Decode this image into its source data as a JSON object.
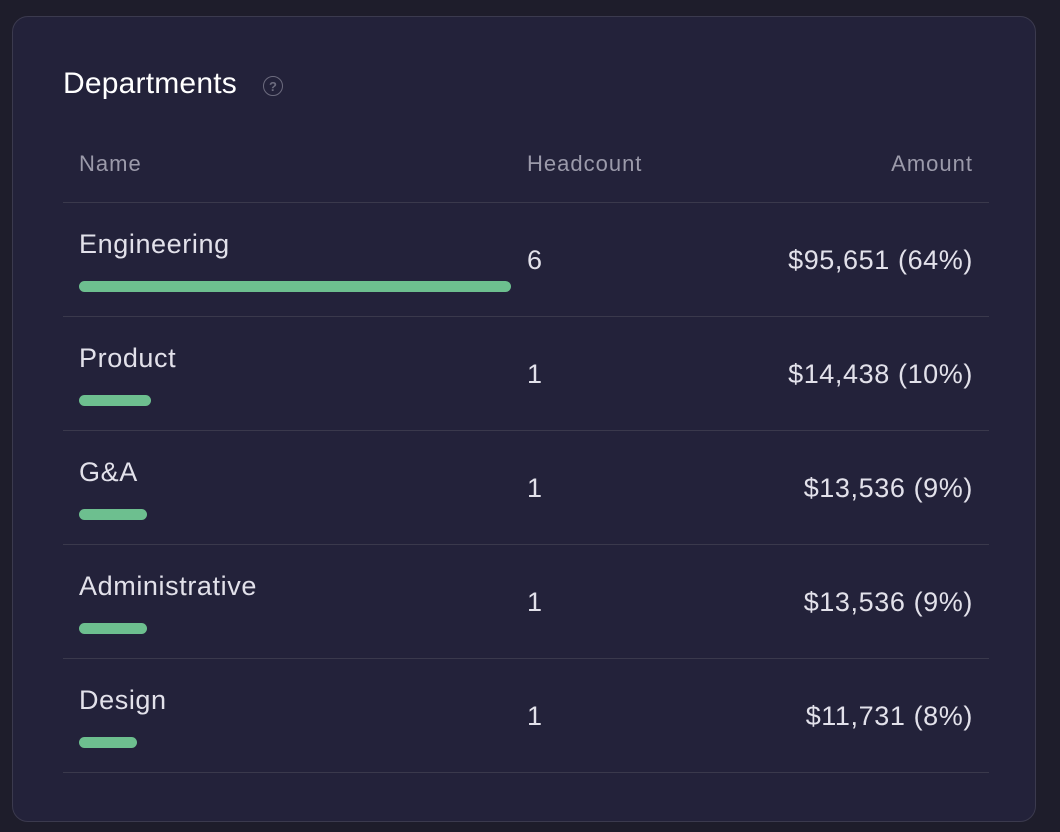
{
  "panel": {
    "title": "Departments",
    "help_icon": "question-circle-icon",
    "colors": {
      "background": "#23223a",
      "bar": "#6dbf8f"
    }
  },
  "table": {
    "columns": {
      "name": "Name",
      "headcount": "Headcount",
      "amount": "Amount"
    },
    "rows": [
      {
        "name": "Engineering",
        "headcount": "6",
        "amount": "$95,651 (64%)",
        "bar_fraction": 1.0
      },
      {
        "name": "Product",
        "headcount": "1",
        "amount": "$14,438 (10%)",
        "bar_fraction": 0.167
      },
      {
        "name": "G&A",
        "headcount": "1",
        "amount": "$13,536 (9%)",
        "bar_fraction": 0.157
      },
      {
        "name": "Administrative",
        "headcount": "1",
        "amount": "$13,536 (9%)",
        "bar_fraction": 0.157
      },
      {
        "name": "Design",
        "headcount": "1",
        "amount": "$11,731 (8%)",
        "bar_fraction": 0.134
      }
    ]
  }
}
